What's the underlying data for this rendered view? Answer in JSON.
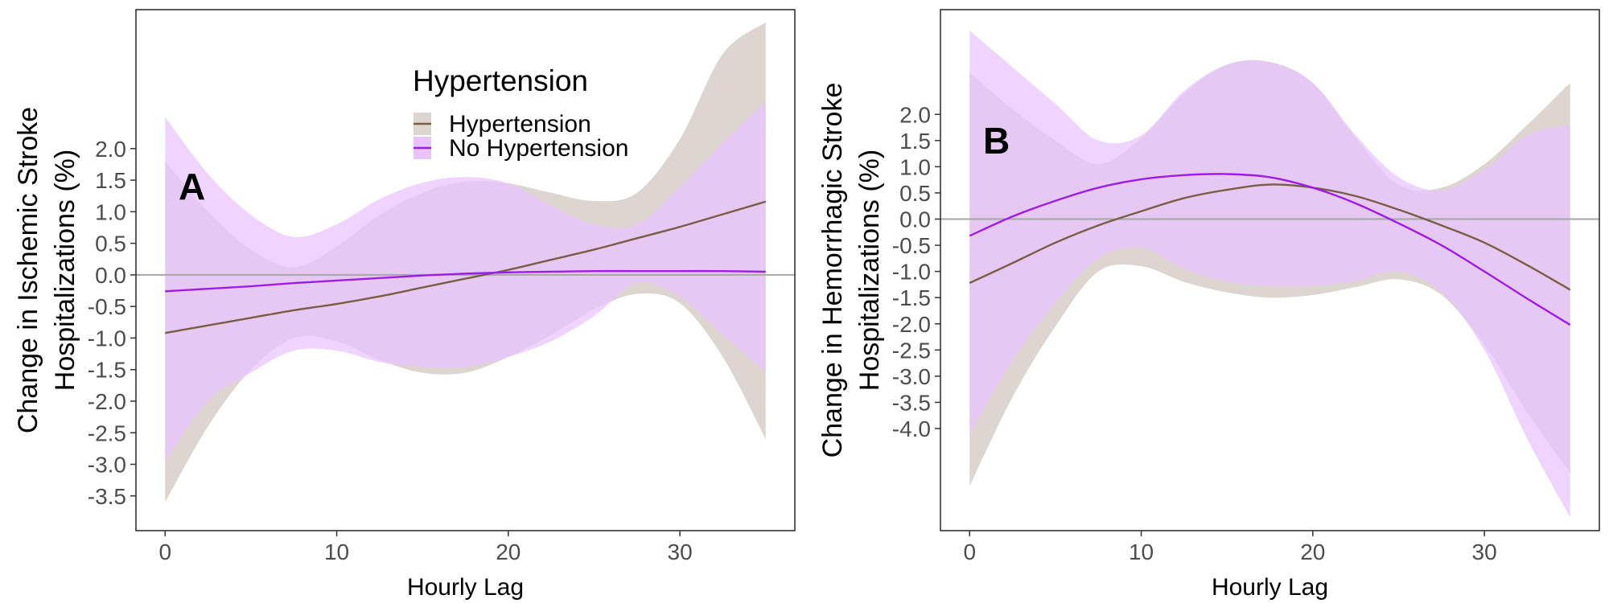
{
  "chart_data": [
    {
      "type": "line",
      "panel_label": "A",
      "xlabel": "Hourly Lag",
      "ylabel_lines": [
        "Change in Ischemic Stroke",
        "Hospitalizations (%)"
      ],
      "xlim": [
        -1.7,
        36.7
      ],
      "ylim": [
        -4.05,
        4.2
      ],
      "x_ticks": [
        0,
        10,
        20,
        30
      ],
      "y_ticks": [
        -3.5,
        -3.0,
        -2.5,
        -2.0,
        -1.5,
        -1.0,
        -0.5,
        0.0,
        0.5,
        1.0,
        1.5,
        2.0
      ],
      "y_tick_labels": [
        "-3.5",
        "-3.0",
        "-2.5",
        "-2.0",
        "-1.5",
        "-1.0",
        "-0.5",
        "0.0",
        "0.5",
        "1.0",
        "1.5",
        "2.0"
      ],
      "reference_line": 0,
      "grid": false,
      "legend": {
        "title": "Hypertension",
        "placement": "top-center",
        "entries": [
          "Hypertension",
          "No Hypertension"
        ]
      },
      "x": [
        0,
        2.5,
        5,
        7.5,
        10,
        12.5,
        15,
        17.5,
        20,
        22.5,
        25,
        27.5,
        30,
        32.5,
        35
      ],
      "series": [
        {
          "name": "Hypertension",
          "color": "#7b5c45",
          "fill": "#ddd6d0",
          "values": [
            -0.92,
            -0.8,
            -0.68,
            -0.56,
            -0.46,
            -0.34,
            -0.2,
            -0.06,
            0.08,
            0.24,
            0.4,
            0.58,
            0.76,
            0.96,
            1.16
          ],
          "lower": [
            -3.6,
            -2.4,
            -1.5,
            -1.0,
            -1.05,
            -1.35,
            -1.55,
            -1.55,
            -1.3,
            -0.95,
            -0.55,
            -0.3,
            -0.45,
            -1.3,
            -2.6
          ],
          "upper": [
            1.8,
            1.0,
            0.4,
            0.12,
            0.45,
            0.95,
            1.3,
            1.48,
            1.45,
            1.3,
            1.17,
            1.3,
            2.15,
            3.5,
            4.0
          ]
        },
        {
          "name": "No Hypertension",
          "color": "#9f1ce8",
          "fill": "#e9c3ff",
          "values": [
            -0.26,
            -0.22,
            -0.18,
            -0.13,
            -0.09,
            -0.05,
            -0.01,
            0.02,
            0.04,
            0.05,
            0.06,
            0.06,
            0.06,
            0.06,
            0.05
          ],
          "lower": [
            -2.95,
            -2.0,
            -1.55,
            -1.2,
            -1.2,
            -1.38,
            -1.46,
            -1.46,
            -1.3,
            -1.05,
            -0.65,
            -0.13,
            -0.35,
            -0.95,
            -1.55
          ],
          "upper": [
            2.5,
            1.6,
            0.95,
            0.6,
            0.8,
            1.2,
            1.46,
            1.55,
            1.45,
            1.1,
            0.8,
            0.8,
            1.4,
            2.1,
            2.75
          ]
        }
      ]
    },
    {
      "type": "line",
      "panel_label": "B",
      "xlabel": "Hourly Lag",
      "ylabel_lines": [
        "Change in Hemorrhagic Stroke",
        "Hospitalizations (%)"
      ],
      "xlim": [
        -1.7,
        36.7
      ],
      "ylim": [
        -5.95,
        4.0
      ],
      "x_ticks": [
        0,
        10,
        20,
        30
      ],
      "y_ticks": [
        -4.0,
        -3.5,
        -3.0,
        -2.5,
        -2.0,
        -1.5,
        -1.0,
        -0.5,
        0.0,
        0.5,
        1.0,
        1.5,
        2.0
      ],
      "y_tick_labels": [
        "-4.0",
        "-3.5",
        "-3.0",
        "-2.5",
        "-2.0",
        "-1.5",
        "-1.0",
        "-0.5",
        "0.0",
        "0.5",
        "1.0",
        "1.5",
        "2.0"
      ],
      "reference_line": 0,
      "grid": false,
      "x": [
        0,
        2.5,
        5,
        7.5,
        10,
        12.5,
        15,
        17.5,
        20,
        22.5,
        25,
        27.5,
        30,
        32.5,
        35
      ],
      "series": [
        {
          "name": "Hypertension",
          "color": "#7b5c45",
          "fill": "#ddd6d0",
          "values": [
            -1.22,
            -0.84,
            -0.45,
            -0.12,
            0.15,
            0.4,
            0.56,
            0.66,
            0.6,
            0.44,
            0.18,
            -0.12,
            -0.45,
            -0.88,
            -1.35
          ],
          "lower": [
            -5.1,
            -3.4,
            -2.05,
            -1.0,
            -0.9,
            -1.2,
            -1.4,
            -1.5,
            -1.45,
            -1.3,
            -1.15,
            -1.45,
            -2.4,
            -3.7,
            -4.85
          ],
          "upper": [
            2.8,
            2.1,
            1.5,
            1.05,
            1.55,
            2.4,
            2.95,
            3.0,
            2.6,
            1.55,
            0.65,
            0.6,
            1.05,
            1.8,
            2.6
          ]
        },
        {
          "name": "No Hypertension",
          "color": "#9f1ce8",
          "fill": "#e9c3ff",
          "values": [
            -0.32,
            0.05,
            0.35,
            0.6,
            0.76,
            0.84,
            0.86,
            0.8,
            0.6,
            0.3,
            -0.08,
            -0.5,
            -1.0,
            -1.52,
            -2.02
          ],
          "lower": [
            -4.1,
            -2.7,
            -1.6,
            -0.75,
            -0.55,
            -0.95,
            -1.2,
            -1.28,
            -1.28,
            -1.18,
            -1.0,
            -1.4,
            -2.5,
            -4.2,
            -5.7
          ],
          "upper": [
            3.6,
            2.9,
            2.2,
            1.5,
            1.6,
            2.45,
            2.95,
            3.0,
            2.6,
            1.6,
            0.8,
            0.55,
            0.95,
            1.6,
            1.8
          ]
        }
      ]
    }
  ]
}
